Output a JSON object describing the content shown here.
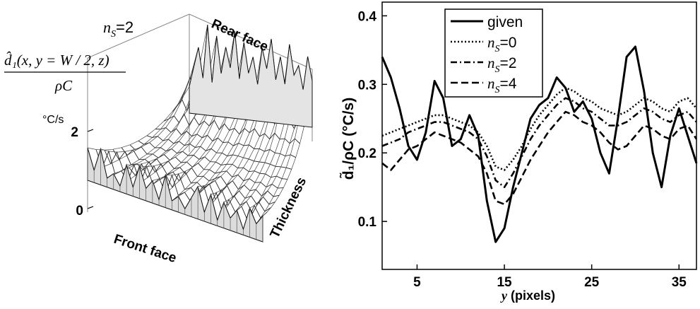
{
  "left_panel": {
    "title_ns": "n",
    "title_ns_sub": "S",
    "title_eq": "=2",
    "zlabel_num": "d̂₁(x, y = W / 2, z)",
    "zlabel_den": "ρC",
    "zunit": "°C/s",
    "ztick_top": "2",
    "ztick_bottom": "0",
    "label_rear": "Rear face",
    "label_front": "Front face",
    "label_thickness": "Thickness"
  },
  "right_panel": {
    "ylabel": "d̃₁/ρC (°C/s)",
    "xlabel_var": "y",
    "xlabel_unit": " (pixels)",
    "xticks": [
      "5",
      "15",
      "25",
      "35"
    ],
    "yticks": [
      "0.1",
      "0.2",
      "0.3",
      "0.4"
    ],
    "legend": [
      {
        "main": "given",
        "sub": "",
        "eq": ""
      },
      {
        "main": "n",
        "sub": "S",
        "eq": "=0"
      },
      {
        "main": "n",
        "sub": "S",
        "eq": "=2"
      },
      {
        "main": "n",
        "sub": "S",
        "eq": "=4"
      }
    ]
  },
  "chart_data": [
    {
      "type": "surface",
      "title": "nS=2",
      "zlabel": "d̂₁(x, y = W / 2, z) / ρC",
      "zunit": "°C/s",
      "zlim": [
        0,
        2
      ],
      "axis_labels": [
        "Front face",
        "Rear face",
        "Thickness"
      ],
      "rear_profile": [
        0.3,
        0.9,
        1.5,
        0.6,
        2.2,
        0.5,
        1.9,
        0.8,
        1.6,
        1.0,
        2.1,
        0.7,
        1.8,
        0.9,
        1.4,
        0.6,
        1.7,
        1.1,
        2.0,
        0.8,
        1.5,
        0.7,
        1.9,
        1.0,
        1.3,
        0.6,
        1.6,
        0.9
      ],
      "front_profile": [
        0.9,
        0.3,
        1.0,
        0.2,
        0.4,
        0.1,
        0.8,
        0.2,
        0.9,
        0.3,
        0.6,
        0.1,
        0.9,
        0.2,
        0.4,
        0.1,
        0.5,
        0.9,
        0.2,
        0.8,
        0.1,
        0.7,
        0.3,
        0.6,
        0.1,
        0.8,
        0.4,
        0.7
      ]
    },
    {
      "type": "line",
      "xlabel": "y (pixels)",
      "ylabel": "d̃₁/ρC (°C/s)",
      "xlim": [
        1,
        37
      ],
      "ylim": [
        0.03,
        0.42
      ],
      "xticks": [
        5,
        15,
        25,
        35
      ],
      "yticks": [
        0.1,
        0.2,
        0.3,
        0.4
      ],
      "legend_position": "top-center",
      "x": [
        1,
        2,
        3,
        4,
        5,
        6,
        7,
        8,
        9,
        10,
        11,
        12,
        13,
        14,
        15,
        16,
        17,
        18,
        19,
        20,
        21,
        22,
        23,
        24,
        25,
        26,
        27,
        28,
        29,
        30,
        31,
        32,
        33,
        34,
        35,
        36,
        37
      ],
      "series": [
        {
          "name": "given",
          "style": "solid",
          "values": [
            0.34,
            0.31,
            0.265,
            0.21,
            0.19,
            0.23,
            0.305,
            0.28,
            0.21,
            0.22,
            0.255,
            0.225,
            0.13,
            0.07,
            0.09,
            0.15,
            0.2,
            0.25,
            0.27,
            0.28,
            0.31,
            0.295,
            0.26,
            0.275,
            0.25,
            0.2,
            0.17,
            0.25,
            0.34,
            0.355,
            0.29,
            0.2,
            0.15,
            0.225,
            0.265,
            0.225,
            0.185
          ]
        },
        {
          "name": "nS=0",
          "style": "dotted",
          "values": [
            0.225,
            0.23,
            0.235,
            0.24,
            0.245,
            0.25,
            0.255,
            0.255,
            0.25,
            0.245,
            0.24,
            0.23,
            0.21,
            0.18,
            0.175,
            0.19,
            0.21,
            0.235,
            0.255,
            0.27,
            0.285,
            0.295,
            0.29,
            0.28,
            0.275,
            0.265,
            0.26,
            0.255,
            0.26,
            0.27,
            0.28,
            0.275,
            0.265,
            0.26,
            0.275,
            0.28,
            0.265
          ]
        },
        {
          "name": "nS=2",
          "style": "dashdot",
          "values": [
            0.21,
            0.215,
            0.22,
            0.23,
            0.235,
            0.24,
            0.245,
            0.245,
            0.24,
            0.235,
            0.23,
            0.22,
            0.195,
            0.16,
            0.15,
            0.17,
            0.195,
            0.22,
            0.24,
            0.255,
            0.27,
            0.28,
            0.275,
            0.265,
            0.26,
            0.25,
            0.24,
            0.24,
            0.245,
            0.255,
            0.265,
            0.26,
            0.25,
            0.245,
            0.255,
            0.26,
            0.245
          ]
        },
        {
          "name": "nS=4",
          "style": "dashed",
          "values": [
            0.185,
            0.175,
            0.19,
            0.205,
            0.21,
            0.22,
            0.23,
            0.225,
            0.22,
            0.215,
            0.205,
            0.195,
            0.17,
            0.13,
            0.125,
            0.14,
            0.165,
            0.19,
            0.21,
            0.23,
            0.245,
            0.26,
            0.255,
            0.245,
            0.24,
            0.23,
            0.215,
            0.205,
            0.21,
            0.225,
            0.24,
            0.235,
            0.225,
            0.22,
            0.235,
            0.24,
            0.22
          ]
        }
      ]
    }
  ]
}
